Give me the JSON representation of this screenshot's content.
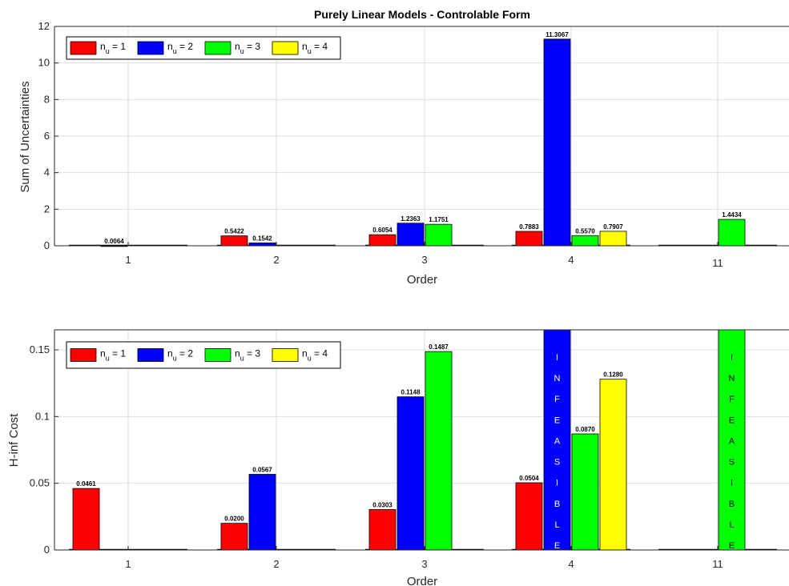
{
  "chart_data": [
    {
      "type": "bar",
      "title": "Purely Linear Models - Controlable Form",
      "xlabel": "Order",
      "ylabel": "Sum of Uncertainties",
      "categories": [
        "1",
        "2",
        "3",
        "4",
        "11"
      ],
      "ylim": [
        0,
        12
      ],
      "yticks": [
        0,
        2,
        4,
        6,
        8,
        10,
        12
      ],
      "ytick_labels": [
        "0",
        "2",
        "4",
        "6",
        "8",
        "10",
        "12"
      ],
      "grid": true,
      "legend_position": "top-left",
      "legend": [
        "n_u = 1",
        "n_u = 2",
        "n_u = 3",
        "n_u = 4"
      ],
      "series": [
        {
          "name": "n_u = 1",
          "color": "#ff0000",
          "values": [
            null,
            0.5422,
            0.6054,
            0.7883,
            null
          ],
          "labels": [
            "",
            "0.5422",
            "0.6054",
            "0.7883",
            ""
          ]
        },
        {
          "name": "n_u = 2",
          "color": "#0000ff",
          "values": [
            0.0064,
            0.1542,
            1.2363,
            11.3067,
            null
          ],
          "labels": [
            "0.0064",
            "0.1542",
            "1.2363",
            "11.3067",
            ""
          ]
        },
        {
          "name": "n_u = 3",
          "color": "#00ff00",
          "values": [
            null,
            null,
            1.1751,
            0.557,
            1.4434
          ],
          "labels": [
            "",
            "",
            "1.1751",
            "0.5570",
            "1.4434"
          ]
        },
        {
          "name": "n_u = 4",
          "color": "#ffff00",
          "values": [
            null,
            null,
            null,
            0.7907,
            null
          ],
          "labels": [
            "",
            "",
            "",
            "0.7907",
            ""
          ]
        }
      ]
    },
    {
      "type": "bar",
      "title": "",
      "xlabel": "Order",
      "ylabel": "H-inf Cost",
      "categories": [
        "1",
        "2",
        "3",
        "4",
        "11"
      ],
      "ylim": [
        0,
        0.165
      ],
      "yticks": [
        0,
        0.05,
        0.1,
        0.15
      ],
      "ytick_labels": [
        "0",
        "0.05",
        "0.1",
        "0.15"
      ],
      "grid": true,
      "legend_position": "top-left",
      "legend": [
        "n_u = 1",
        "n_u = 2",
        "n_u = 3",
        "n_u = 4"
      ],
      "infeasible_text": "INFEASIBLE",
      "series": [
        {
          "name": "n_u = 1",
          "color": "#ff0000",
          "values": [
            0.0461,
            0.02,
            0.0303,
            0.0504,
            null
          ],
          "labels": [
            "0.0461",
            "0.0200",
            "0.0303",
            "0.0504",
            ""
          ],
          "infeasible": [
            false,
            false,
            false,
            false,
            false
          ]
        },
        {
          "name": "n_u = 2",
          "color": "#0000ff",
          "values": [
            null,
            0.0567,
            0.1148,
            null,
            null
          ],
          "labels": [
            "",
            "0.0567",
            "0.1148",
            "",
            ""
          ],
          "infeasible": [
            false,
            false,
            false,
            true,
            false
          ]
        },
        {
          "name": "n_u = 3",
          "color": "#00ff00",
          "values": [
            null,
            null,
            0.1487,
            0.087,
            null
          ],
          "labels": [
            "",
            "",
            "0.1487",
            "0.0870",
            ""
          ],
          "infeasible": [
            false,
            false,
            false,
            false,
            true
          ]
        },
        {
          "name": "n_u = 4",
          "color": "#ffff00",
          "values": [
            null,
            null,
            null,
            0.128,
            null
          ],
          "labels": [
            "",
            "",
            "",
            "0.1280",
            ""
          ],
          "infeasible": [
            false,
            false,
            false,
            false,
            false
          ]
        }
      ]
    }
  ]
}
